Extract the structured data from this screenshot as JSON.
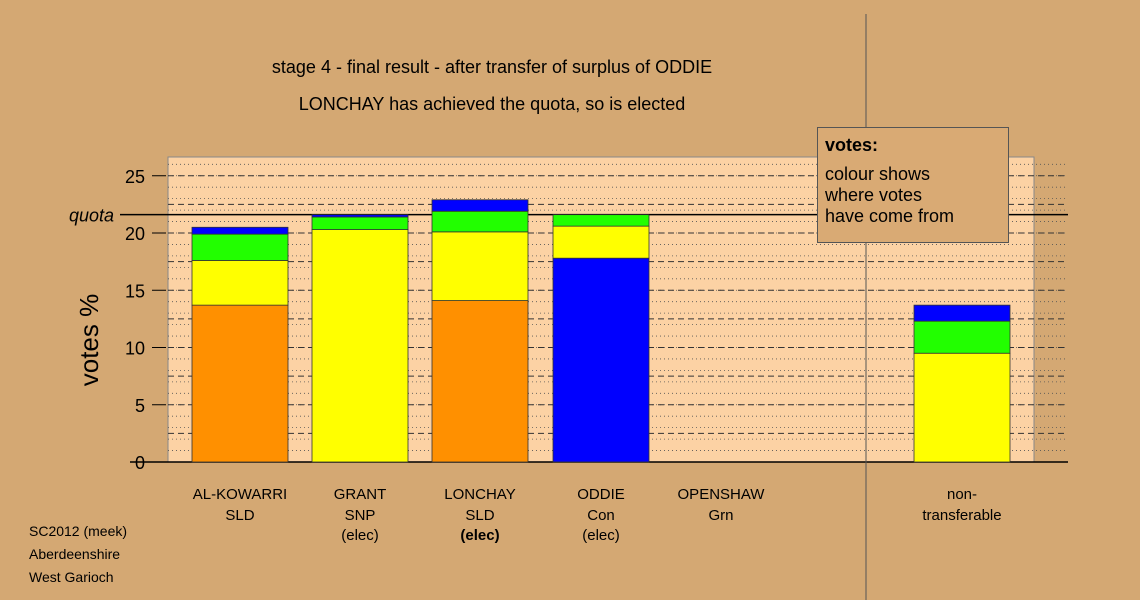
{
  "titles": {
    "line1": "stage 4 - final result - after transfer of surplus of ODDIE",
    "line2": "LONCHAY has achieved the quota, so is elected"
  },
  "footer": [
    "SC2012 (meek)",
    "Aberdeenshire",
    "West Garioch"
  ],
  "legend": {
    "heading": "votes:",
    "lines": [
      "colour shows",
      "where votes",
      "have come from"
    ]
  },
  "colors": {
    "background": "#d4a873",
    "plot_bg": "#fcd2a4",
    "orange": "#ff9000",
    "yellow": "#ffff00",
    "green": "#22ff00",
    "blue": "#0000ff"
  },
  "chart_data": {
    "type": "bar",
    "stacked": true,
    "ylabel": "votes %",
    "ylim": [
      0,
      26.5
    ],
    "yticks": [
      0,
      5,
      10,
      15,
      20,
      25
    ],
    "quota": 21.6,
    "quota_label": "quota",
    "candidates": [
      {
        "name": "AL-KOWARRI",
        "party": "SLD",
        "status": "",
        "status_bold": false,
        "segments": [
          {
            "color": "orange",
            "value": 13.7
          },
          {
            "color": "yellow",
            "value": 3.9
          },
          {
            "color": "green",
            "value": 2.3
          },
          {
            "color": "blue",
            "value": 0.6
          }
        ]
      },
      {
        "name": "GRANT",
        "party": "SNP",
        "status": "(elec)",
        "status_bold": false,
        "segments": [
          {
            "color": "yellow",
            "value": 20.3
          },
          {
            "color": "green",
            "value": 1.1
          },
          {
            "color": "blue",
            "value": 0.2
          }
        ]
      },
      {
        "name": "LONCHAY",
        "party": "SLD",
        "status": "(elec)",
        "status_bold": true,
        "segments": [
          {
            "color": "orange",
            "value": 14.1
          },
          {
            "color": "yellow",
            "value": 6.0
          },
          {
            "color": "green",
            "value": 1.8
          },
          {
            "color": "blue",
            "value": 1.0
          }
        ]
      },
      {
        "name": "ODDIE",
        "party": "Con",
        "status": "(elec)",
        "status_bold": false,
        "segments": [
          {
            "color": "blue",
            "value": 17.8
          },
          {
            "color": "yellow",
            "value": 2.8
          },
          {
            "color": "green",
            "value": 1.0
          }
        ]
      },
      {
        "name": "OPENSHAW",
        "party": "Grn",
        "status": "",
        "status_bold": false,
        "segments": []
      },
      {
        "name": "non-",
        "party": "transferable",
        "status": "",
        "status_bold": false,
        "segments": [
          {
            "color": "yellow",
            "value": 9.5
          },
          {
            "color": "green",
            "value": 2.8
          },
          {
            "color": "blue",
            "value": 1.4
          }
        ]
      }
    ]
  }
}
